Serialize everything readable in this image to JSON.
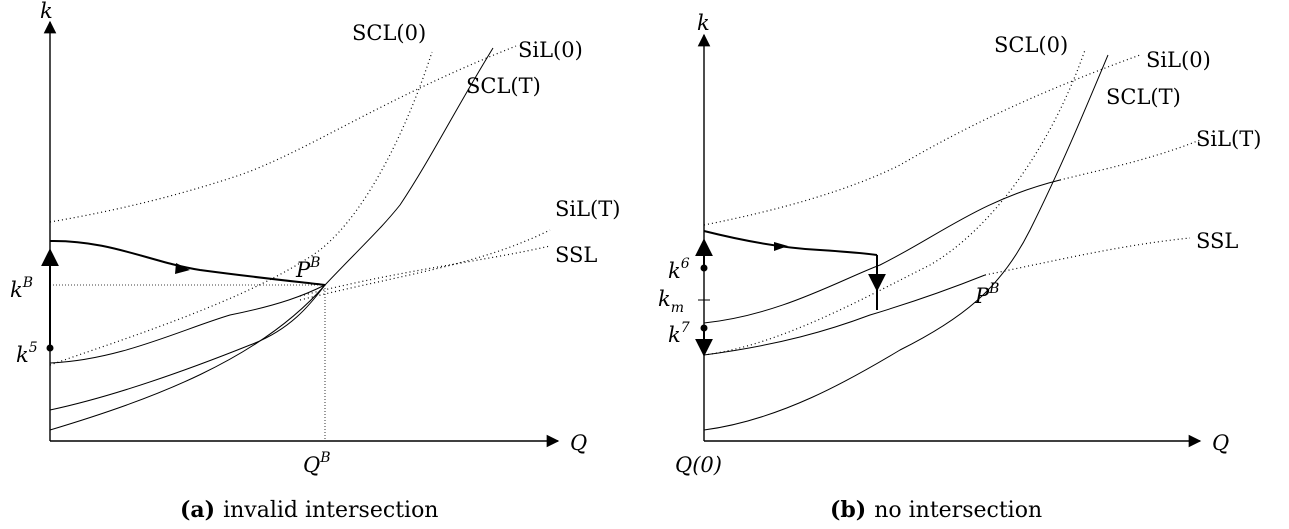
{
  "panel_a": {
    "axis_y": "k",
    "axis_x": "Q",
    "labels": {
      "scl0": "SCL(0)",
      "sil0": "SiL(0)",
      "sclT": "SCL(T)",
      "silT": "SiL(T)",
      "ssl": "SSL",
      "pb_main": "P",
      "pb_sup": "B",
      "kb_main": "k",
      "kb_sup": "B",
      "k5_main": "k",
      "k5_sup": "5",
      "qb_main": "Q",
      "qb_sup": "B"
    },
    "caption_tag": "(a)",
    "caption_text": "invalid intersection"
  },
  "panel_b": {
    "axis_y": "k",
    "axis_x": "Q",
    "labels": {
      "scl0": "SCL(0)",
      "sil0": "SiL(0)",
      "sclT": "SCL(T)",
      "silT": "SiL(T)",
      "ssl": "SSL",
      "pb_main": "P",
      "pb_sup": "B",
      "k6_main": "k",
      "k6_sup": "6",
      "km_main": "k",
      "km_sub": "m",
      "k7_main": "k",
      "k7_sup": "7",
      "q0": "Q(0)"
    },
    "caption_tag": "(b)",
    "caption_text": "no intersection"
  }
}
